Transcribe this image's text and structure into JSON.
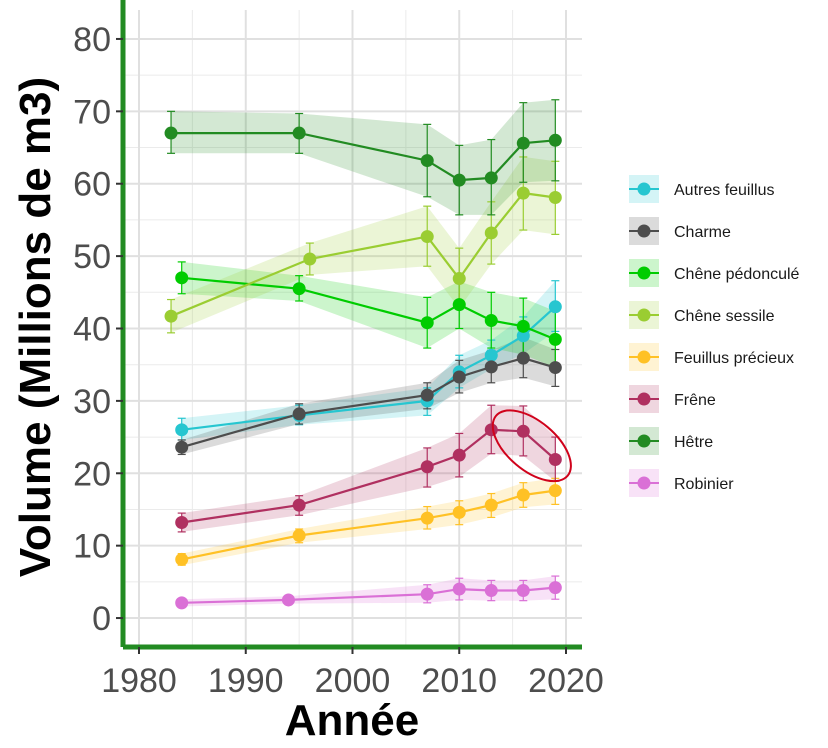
{
  "chart_data": {
    "type": "line",
    "xlabel": "Année",
    "ylabel": "Volume (Millions de m3)",
    "xlim": [
      1978.5,
      2021.5
    ],
    "ylim": [
      -4,
      84
    ],
    "xticks": [
      1980,
      1990,
      2000,
      2010,
      2020
    ],
    "xtick_labels": [
      "1980",
      "1990",
      "2000",
      "2010",
      "2020"
    ],
    "yticks": [
      0,
      10,
      20,
      30,
      40,
      50,
      60,
      70,
      80
    ],
    "ytick_labels": [
      "0",
      "10",
      "20",
      "30",
      "40",
      "50",
      "60",
      "70",
      "80"
    ],
    "grid": true,
    "legend_position": "right",
    "axis_color": "#228B22",
    "series": [
      {
        "name": "Autres feuillus",
        "color": "#26C6D0",
        "x": [
          1984,
          1995,
          2007,
          2010,
          2013,
          2016,
          2019
        ],
        "y": [
          26.0,
          28.0,
          30.0,
          34.0,
          36.3,
          39.0,
          43.0
        ],
        "lower": [
          24.6,
          26.7,
          28.0,
          31.8,
          34.4,
          36.5,
          39.6
        ],
        "upper": [
          27.6,
          29.4,
          31.8,
          36.3,
          38.4,
          41.6,
          46.6
        ]
      },
      {
        "name": "Charme",
        "color": "#4D4D4D",
        "x": [
          1984,
          1995,
          2007,
          2010,
          2013,
          2016,
          2019
        ],
        "y": [
          23.6,
          28.2,
          30.8,
          33.3,
          34.7,
          35.9,
          34.6
        ],
        "lower": [
          22.6,
          26.8,
          28.9,
          31.1,
          32.5,
          33.2,
          32.0
        ],
        "upper": [
          24.6,
          29.6,
          32.5,
          35.6,
          37.0,
          38.8,
          37.1
        ]
      },
      {
        "name": "Chêne pédonculé",
        "color": "#00CC00",
        "x": [
          1984,
          1995,
          2007,
          2010,
          2013,
          2016,
          2019
        ],
        "y": [
          47.0,
          45.5,
          40.8,
          43.3,
          41.1,
          40.3,
          38.5
        ],
        "lower": [
          44.8,
          43.8,
          37.3,
          40.0,
          37.3,
          36.4,
          34.6
        ],
        "upper": [
          49.2,
          47.3,
          44.3,
          46.5,
          45.0,
          44.2,
          42.4
        ]
      },
      {
        "name": "Chêne sessile",
        "color": "#9ACD32",
        "x": [
          1983,
          1996,
          2007,
          2010,
          2013,
          2016,
          2019
        ],
        "y": [
          41.7,
          49.6,
          52.7,
          46.9,
          53.2,
          58.7,
          58.1
        ],
        "lower": [
          39.4,
          47.4,
          48.6,
          42.8,
          48.9,
          53.6,
          53.0
        ],
        "upper": [
          44.0,
          51.8,
          56.9,
          51.1,
          57.5,
          63.7,
          63.1
        ]
      },
      {
        "name": "Feuillus précieux",
        "color": "#FFC125",
        "x": [
          1984,
          1995,
          2007,
          2010,
          2013,
          2016,
          2019
        ],
        "y": [
          8.1,
          11.4,
          13.8,
          14.6,
          15.6,
          17.0,
          17.6
        ],
        "lower": [
          7.3,
          10.4,
          12.3,
          12.9,
          13.9,
          15.3,
          15.7
        ],
        "upper": [
          8.9,
          12.3,
          15.4,
          16.2,
          17.2,
          18.7,
          19.3
        ]
      },
      {
        "name": "Frêne",
        "color": "#B03060",
        "x": [
          1984,
          1995,
          2007,
          2010,
          2013,
          2016,
          2019
        ],
        "y": [
          13.2,
          15.6,
          20.9,
          22.5,
          26.0,
          25.8,
          21.9
        ],
        "lower": [
          11.9,
          14.2,
          18.1,
          19.5,
          22.7,
          22.4,
          18.9
        ],
        "upper": [
          14.5,
          16.9,
          23.5,
          25.5,
          29.4,
          29.3,
          25.0
        ]
      },
      {
        "name": "Hêtre",
        "color": "#228B22",
        "x": [
          1983,
          1995,
          2007,
          2010,
          2013,
          2016,
          2019
        ],
        "y": [
          67.0,
          67.0,
          63.2,
          60.5,
          60.8,
          65.6,
          66.0
        ],
        "lower": [
          64.2,
          64.2,
          58.2,
          55.7,
          55.7,
          60.2,
          60.4
        ],
        "upper": [
          70.0,
          69.7,
          68.2,
          65.3,
          66.1,
          71.2,
          71.6
        ]
      },
      {
        "name": "Robinier",
        "color": "#DA70D6",
        "x": [
          1984,
          1994,
          2007,
          2010,
          2013,
          2016,
          2019
        ],
        "y": [
          2.1,
          2.5,
          3.3,
          4.0,
          3.8,
          3.8,
          4.2
        ],
        "lower": [
          1.6,
          2.0,
          2.1,
          2.5,
          2.4,
          2.4,
          2.6
        ],
        "upper": [
          2.6,
          3.0,
          4.6,
          5.5,
          5.2,
          5.2,
          5.8
        ]
      }
    ],
    "annotations": [
      {
        "shape": "ellipse",
        "color": "#D0021B",
        "x_center": 2016.8,
        "y_center": 23.8,
        "x_radius": 3.5,
        "y_radius": 4.5,
        "tilt_deg": 40
      }
    ]
  }
}
